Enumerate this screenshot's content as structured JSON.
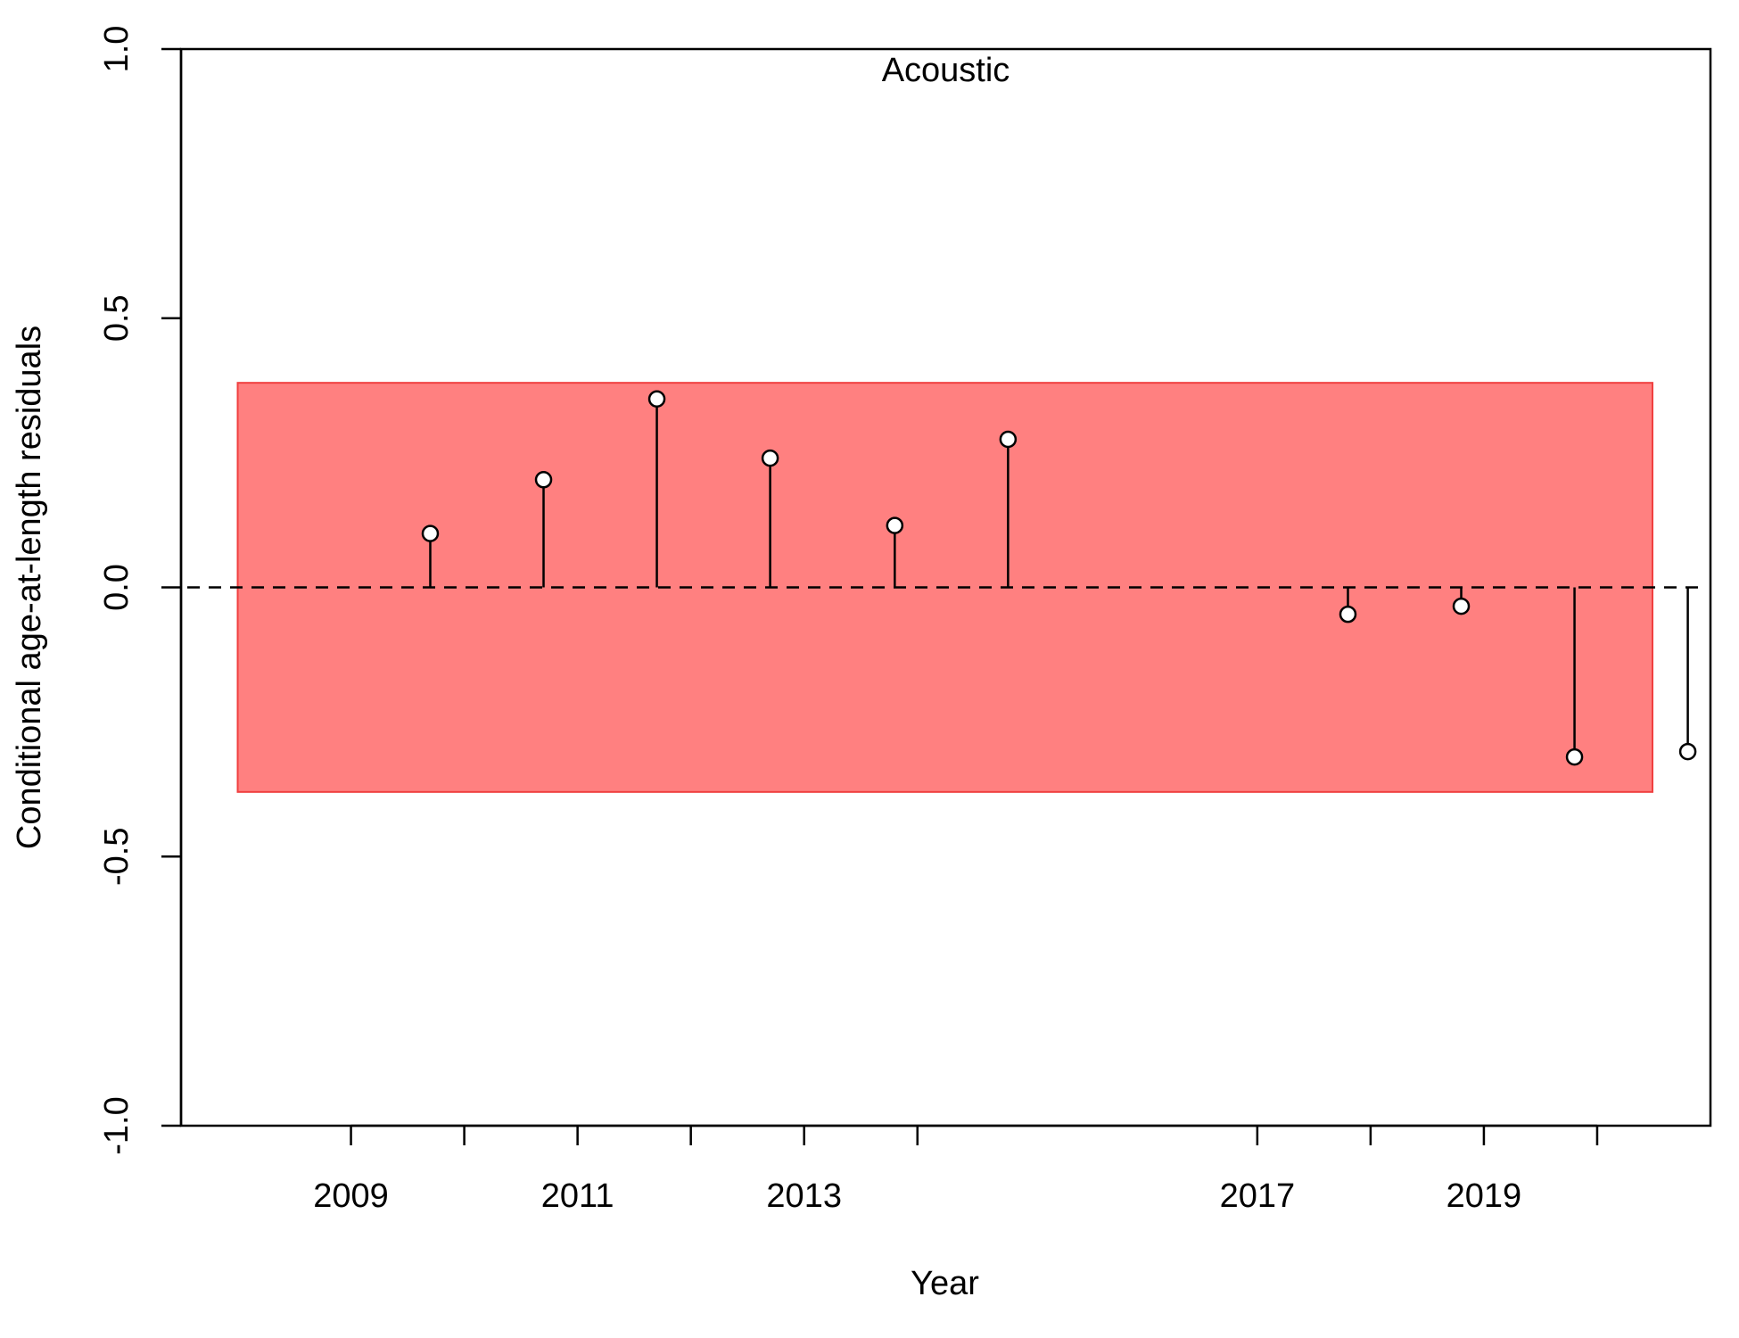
{
  "chart_data": {
    "type": "scatter",
    "title": "Acoustic",
    "xlabel": "Year",
    "ylabel": "Conditional age-at-length residuals",
    "xlim": [
      2007.5,
      2021.0
    ],
    "ylim": [
      -1.0,
      1.0
    ],
    "x_ticks": [
      2009,
      2010,
      2011,
      2012,
      2013,
      2014,
      2017,
      2018,
      2019,
      2020
    ],
    "x_tick_labels": [
      "2009",
      "",
      "2011",
      "",
      "2013",
      "",
      "2017",
      "",
      "2019",
      ""
    ],
    "y_ticks": [
      -1.0,
      -0.5,
      0.0,
      0.5,
      1.0
    ],
    "y_tick_labels": [
      "-1.0",
      "-0.5",
      "0.0",
      "0.5",
      "1.0"
    ],
    "reference_line": {
      "y": 0.0,
      "style": "dashed"
    },
    "interval_band": {
      "x": [
        2008.0,
        2021.0
      ],
      "y": [
        -0.38,
        0.38
      ],
      "color": "#ff8080",
      "border": "#f04040"
    },
    "grid": false,
    "points": [
      {
        "x": 2009.7,
        "y": 0.1
      },
      {
        "x": 2010.7,
        "y": 0.2
      },
      {
        "x": 2011.7,
        "y": 0.35
      },
      {
        "x": 2012.7,
        "y": 0.24
      },
      {
        "x": 2013.8,
        "y": 0.115
      },
      {
        "x": 2014.8,
        "y": 0.275
      },
      {
        "x": 2017.8,
        "y": -0.05
      },
      {
        "x": 2018.8,
        "y": -0.035
      },
      {
        "x": 2019.8,
        "y": -0.315
      },
      {
        "x": 2020.8,
        "y": -0.305
      }
    ]
  }
}
